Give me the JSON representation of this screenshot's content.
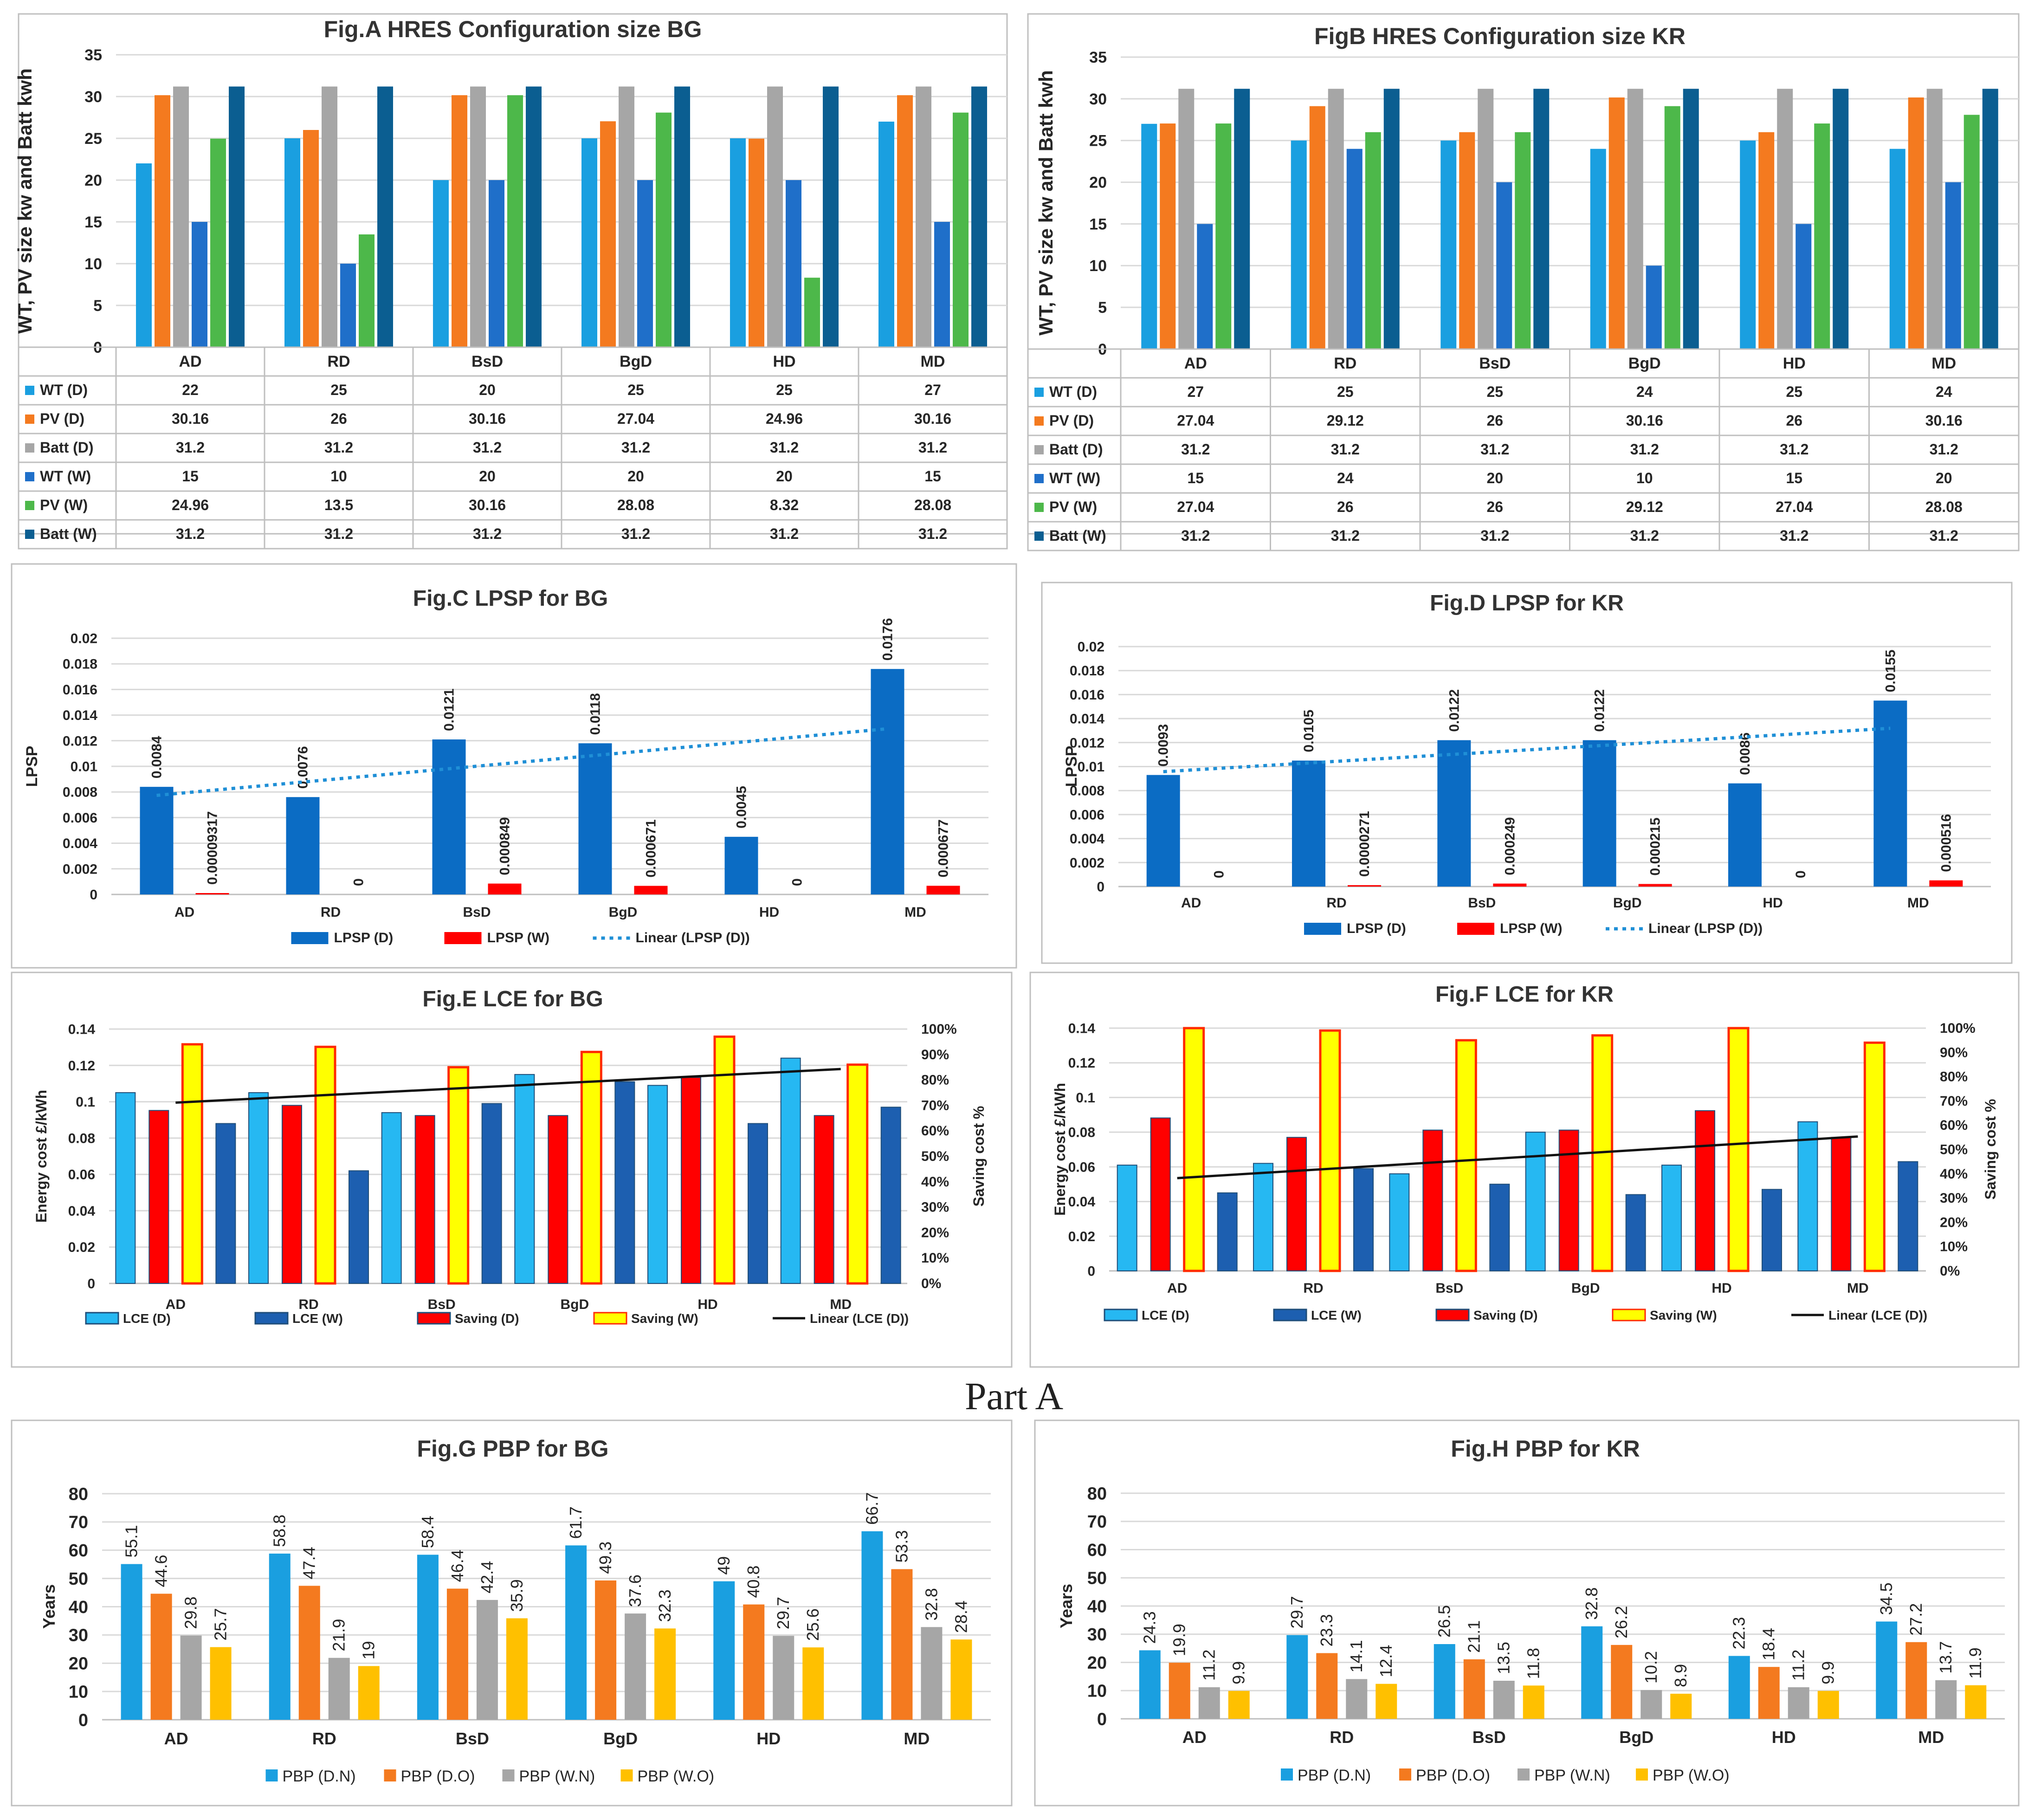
{
  "part_label": "Part A",
  "colors": {
    "wt_d": "#1a9fe0",
    "pv_d": "#f47a1f",
    "batt_d": "#a6a6a6",
    "wt_w": "#1f6fc9",
    "pv_w": "#4db84a",
    "batt_w": "#0b5e91",
    "lpsp_d": "#0b6cc4",
    "lpsp_w": "#ff0000",
    "trend_lpsp": "#1f8fd6",
    "lce_d": "#26b8f2",
    "lce_w": "#1d5fb0",
    "saving_d": "#ff0000",
    "saving_w": "#ffff00",
    "saving_w_border": "#ff2a00",
    "trend": "#111111",
    "pbp_dn": "#1a9fe0",
    "pbp_do": "#f47a1f",
    "pbp_wn": "#a6a6a6",
    "pbp_wo": "#ffc000",
    "grid": "#d9d9d9",
    "frame": "#bfbfbf"
  },
  "chart_data": [
    {
      "id": "A",
      "type": "bar",
      "title": "Fig.A HRES Configuration size BG",
      "ylabel": "WT, PV size kw and Batt kwh",
      "ylim": [
        0,
        35
      ],
      "yticks": [
        0,
        5,
        10,
        15,
        20,
        25,
        30,
        35
      ],
      "categories": [
        "AD",
        "RD",
        "BsD",
        "BgD",
        "HD",
        "MD"
      ],
      "series": [
        {
          "name": "WT (D)",
          "color_key": "wt_d",
          "values": [
            22,
            25,
            20,
            25,
            25,
            27
          ],
          "labels": [
            "22",
            "25",
            "20",
            "25",
            "25",
            "27"
          ]
        },
        {
          "name": "PV (D)",
          "color_key": "pv_d",
          "values": [
            30.16,
            26,
            30.16,
            27.04,
            24.96,
            30.16
          ],
          "labels": [
            "30.16",
            "26",
            "30.16",
            "27.04",
            "24.96",
            "30.16"
          ]
        },
        {
          "name": "Batt (D)",
          "color_key": "batt_d",
          "values": [
            31.2,
            31.2,
            31.2,
            31.2,
            31.2,
            31.2
          ],
          "labels": [
            "31.2",
            "31.2",
            "31.2",
            "31.2",
            "31.2",
            "31.2"
          ]
        },
        {
          "name": "WT (W)",
          "color_key": "wt_w",
          "values": [
            15,
            10,
            20,
            20,
            20,
            15
          ],
          "labels": [
            "15",
            "10",
            "20",
            "20",
            "20",
            "15"
          ]
        },
        {
          "name": "PV (W)",
          "color_key": "pv_w",
          "values": [
            24.96,
            13.5,
            30.16,
            28.08,
            8.32,
            28.08
          ],
          "labels": [
            "24.96",
            "13.5",
            "30.16",
            "28.08",
            "8.32",
            "28.08"
          ]
        },
        {
          "name": "Batt (W)",
          "color_key": "batt_w",
          "values": [
            31.2,
            31.2,
            31.2,
            31.2,
            31.2,
            31.2
          ],
          "labels": [
            "31.2",
            "31.2",
            "31.2",
            "31.2",
            "31.2",
            "31.2"
          ]
        }
      ]
    },
    {
      "id": "B",
      "type": "bar",
      "title": "FigB HRES Configuration size KR",
      "ylabel": "WT, PV size kw and Batt kwh",
      "ylim": [
        0,
        35
      ],
      "yticks": [
        0,
        5,
        10,
        15,
        20,
        25,
        30,
        35
      ],
      "categories": [
        "AD",
        "RD",
        "BsD",
        "BgD",
        "HD",
        "MD"
      ],
      "series": [
        {
          "name": "WT (D)",
          "color_key": "wt_d",
          "values": [
            27,
            25,
            25,
            24,
            25,
            24
          ],
          "labels": [
            "27",
            "25",
            "25",
            "24",
            "25",
            "24"
          ]
        },
        {
          "name": "PV (D)",
          "color_key": "pv_d",
          "values": [
            27.04,
            29.12,
            26,
            30.16,
            26,
            30.16
          ],
          "labels": [
            "27.04",
            "29.12",
            "26",
            "30.16",
            "26",
            "30.16"
          ]
        },
        {
          "name": "Batt (D)",
          "color_key": "batt_d",
          "values": [
            31.2,
            31.2,
            31.2,
            31.2,
            31.2,
            31.2
          ],
          "labels": [
            "31.2",
            "31.2",
            "31.2",
            "31.2",
            "31.2",
            "31.2"
          ]
        },
        {
          "name": "WT (W)",
          "color_key": "wt_w",
          "values": [
            15,
            24,
            20,
            10,
            15,
            20
          ],
          "labels": [
            "15",
            "24",
            "20",
            "10",
            "15",
            "20"
          ]
        },
        {
          "name": "PV (W)",
          "color_key": "pv_w",
          "values": [
            27.04,
            26,
            26,
            29.12,
            27.04,
            28.08
          ],
          "labels": [
            "27.04",
            "26",
            "26",
            "29.12",
            "27.04",
            "28.08"
          ]
        },
        {
          "name": "Batt (W)",
          "color_key": "batt_w",
          "values": [
            31.2,
            31.2,
            31.2,
            31.2,
            31.2,
            31.2
          ],
          "labels": [
            "31.2",
            "31.2",
            "31.2",
            "31.2",
            "31.2",
            "31.2"
          ]
        }
      ]
    },
    {
      "id": "C",
      "type": "bar",
      "title": "Fig.C LPSP for BG",
      "ylabel": "LPSP",
      "ylim": [
        0,
        0.02
      ],
      "yticks": [
        0,
        0.002,
        0.004,
        0.006,
        0.008,
        0.01,
        0.012,
        0.014,
        0.016,
        0.018,
        0.02
      ],
      "yticklabels": [
        "0",
        "0.002",
        "0.004",
        "0.006",
        "0.008",
        "0.01",
        "0.012",
        "0.014",
        "0.016",
        "0.018",
        "0.02"
      ],
      "categories": [
        "AD",
        "RD",
        "BsD",
        "BgD",
        "HD",
        "MD"
      ],
      "series": [
        {
          "name": "LPSP (D)",
          "color_key": "lpsp_d",
          "values": [
            0.0084,
            0.0076,
            0.0121,
            0.0118,
            0.0045,
            0.0176
          ],
          "labels": [
            "0.0084",
            "0.0076",
            "0.0121",
            "0.0118",
            "0.0045",
            "0.0176"
          ]
        },
        {
          "name": "LPSP (W)",
          "color_key": "lpsp_w",
          "values": [
            9.317e-05,
            0,
            0.000849,
            0.000671,
            0,
            0.000677
          ],
          "labels": [
            "0.00009317",
            "0",
            "0.000849",
            "0.000671",
            "0",
            "0.000677"
          ]
        }
      ],
      "legend": [
        "LPSP (D)",
        "LPSP (W)",
        "Linear (LPSP (D))"
      ]
    },
    {
      "id": "D",
      "type": "bar",
      "title": "Fig.D LPSP for KR",
      "ylabel": "LPSP",
      "ylim": [
        0,
        0.02
      ],
      "yticks": [
        0,
        0.002,
        0.004,
        0.006,
        0.008,
        0.01,
        0.012,
        0.014,
        0.016,
        0.018,
        0.02
      ],
      "yticklabels": [
        "0",
        "0.002",
        "0.004",
        "0.006",
        "0.008",
        "0.01",
        "0.012",
        "0.014",
        "0.016",
        "0.018",
        "0.02"
      ],
      "categories": [
        "AD",
        "RD",
        "BsD",
        "BgD",
        "HD",
        "MD"
      ],
      "series": [
        {
          "name": "LPSP (D)",
          "color_key": "lpsp_d",
          "values": [
            0.0093,
            0.0105,
            0.0122,
            0.0122,
            0.0086,
            0.0155
          ],
          "labels": [
            "0.0093",
            "0.0105",
            "0.0122",
            "0.0122",
            "0.0086",
            "0.0155"
          ]
        },
        {
          "name": "LPSP (W)",
          "color_key": "lpsp_w",
          "values": [
            0,
            2.71e-05,
            0.000249,
            0.000215,
            0,
            0.000516
          ],
          "labels": [
            "0",
            "0.0000271",
            "0.000249",
            "0.000215",
            "0",
            "0.000516"
          ]
        }
      ],
      "legend": [
        "LPSP (D)",
        "LPSP (W)",
        "Linear (LPSP (D))"
      ]
    },
    {
      "id": "E",
      "type": "bar",
      "title": "Fig.E LCE for BG",
      "ylabel": "Energy cost £/kWh",
      "y2label": "Saving cost %",
      "ylim": [
        0,
        0.14
      ],
      "yticks": [
        0,
        0.02,
        0.04,
        0.06,
        0.08,
        0.1,
        0.12,
        0.14
      ],
      "yticklabels": [
        "0",
        "0.02",
        "0.04",
        "0.06",
        "0.08",
        "0.1",
        "0.12",
        "0.14"
      ],
      "y2lim": [
        0,
        100
      ],
      "y2ticklabels": [
        "0%",
        "10%",
        "20%",
        "30%",
        "40%",
        "50%",
        "60%",
        "70%",
        "80%",
        "90%",
        "100%"
      ],
      "categories": [
        "AD",
        "RD",
        "BsD",
        "BgD",
        "HD",
        "MD"
      ],
      "series": [
        {
          "name": "LCE (D)",
          "axis": "left",
          "color_key": "lce_d",
          "values": [
            0.105,
            0.105,
            0.094,
            0.115,
            0.109,
            0.124
          ]
        },
        {
          "name": "Saving (D)",
          "axis": "right",
          "color_key": "saving_d",
          "values": [
            68,
            70,
            66,
            66,
            81,
            66
          ]
        },
        {
          "name": "Saving (W)",
          "axis": "right",
          "color_key": "saving_w",
          "values": [
            94,
            93,
            85,
            91,
            97,
            86
          ]
        },
        {
          "name": "LCE (W)",
          "axis": "left",
          "color_key": "lce_w",
          "values": [
            0.088,
            0.062,
            0.099,
            0.111,
            0.088,
            0.097
          ]
        }
      ],
      "trend": {
        "name": "Linear (LCE (D))",
        "start": 0.0995,
        "end": 0.118
      },
      "legend": [
        "LCE (D)",
        "LCE (W)",
        "Saving (D)",
        "Saving (W)",
        "Linear (LCE (D))"
      ]
    },
    {
      "id": "F",
      "type": "bar",
      "title": "Fig.F LCE for KR",
      "ylabel": "Energy cost £/kWh",
      "y2label": "Saving cost %",
      "ylim": [
        0,
        0.14
      ],
      "yticks": [
        0,
        0.02,
        0.04,
        0.06,
        0.08,
        0.1,
        0.12,
        0.14
      ],
      "yticklabels": [
        "0",
        "0.02",
        "0.04",
        "0.06",
        "0.08",
        "0.1",
        "0.12",
        "0.14"
      ],
      "y2lim": [
        0,
        100
      ],
      "y2ticklabels": [
        "0%",
        "10%",
        "20%",
        "30%",
        "40%",
        "50%",
        "60%",
        "70%",
        "80%",
        "90%",
        "100%"
      ],
      "categories": [
        "AD",
        "RD",
        "BsD",
        "BgD",
        "HD",
        "MD"
      ],
      "series": [
        {
          "name": "LCE (D)",
          "axis": "left",
          "color_key": "lce_d",
          "values": [
            0.061,
            0.062,
            0.056,
            0.08,
            0.061,
            0.086
          ]
        },
        {
          "name": "Saving (D)",
          "axis": "right",
          "color_key": "saving_d",
          "values": [
            63,
            55,
            58,
            58,
            66,
            55
          ]
        },
        {
          "name": "Saving (W)",
          "axis": "right",
          "color_key": "saving_w",
          "values": [
            100,
            99,
            95,
            97,
            100,
            94
          ]
        },
        {
          "name": "LCE (W)",
          "axis": "left",
          "color_key": "lce_w",
          "values": [
            0.045,
            0.059,
            0.05,
            0.044,
            0.047,
            0.063
          ]
        }
      ],
      "trend": {
        "name": "Linear (LCE (D))",
        "start": 0.0535,
        "end": 0.0775
      },
      "legend": [
        "LCE (D)",
        "LCE (W)",
        "Saving (D)",
        "Saving (W)",
        "Linear (LCE (D))"
      ]
    },
    {
      "id": "G",
      "type": "bar",
      "title": "Fig.G PBP for BG",
      "ylabel": "Years",
      "ylim": [
        0,
        80
      ],
      "yticks": [
        0,
        10,
        20,
        30,
        40,
        50,
        60,
        70,
        80
      ],
      "categories": [
        "AD",
        "RD",
        "BsD",
        "BgD",
        "HD",
        "MD"
      ],
      "series": [
        {
          "name": "PBP (D.N)",
          "color_key": "pbp_dn",
          "values": [
            55.1,
            58.8,
            58.4,
            61.7,
            49,
            66.7
          ],
          "labels": [
            "55.1",
            "58.8",
            "58.4",
            "61.7",
            "49",
            "66.7"
          ]
        },
        {
          "name": "PBP (D.O)",
          "color_key": "pbp_do",
          "values": [
            44.6,
            47.4,
            46.4,
            49.3,
            40.8,
            53.3
          ],
          "labels": [
            "44.6",
            "47.4",
            "46.4",
            "49.3",
            "40.8",
            "53.3"
          ]
        },
        {
          "name": "PBP (W.N)",
          "color_key": "pbp_wn",
          "values": [
            29.8,
            21.9,
            42.4,
            37.6,
            29.7,
            32.8
          ],
          "labels": [
            "29.8",
            "21.9",
            "42.4",
            "37.6",
            "29.7",
            "32.8"
          ]
        },
        {
          "name": "PBP (W.O)",
          "color_key": "pbp_wo",
          "values": [
            25.7,
            19,
            35.9,
            32.3,
            25.6,
            28.4
          ],
          "labels": [
            "25.7",
            "19",
            "35.9",
            "32.3",
            "25.6",
            "28.4"
          ]
        }
      ]
    },
    {
      "id": "H",
      "type": "bar",
      "title": "Fig.H PBP for KR",
      "ylabel": "Years",
      "ylim": [
        0,
        80
      ],
      "yticks": [
        0,
        10,
        20,
        30,
        40,
        50,
        60,
        70,
        80
      ],
      "categories": [
        "AD",
        "RD",
        "BsD",
        "BgD",
        "HD",
        "MD"
      ],
      "series": [
        {
          "name": "PBP (D.N)",
          "color_key": "pbp_dn",
          "values": [
            24.3,
            29.7,
            26.5,
            32.8,
            22.3,
            34.5
          ],
          "labels": [
            "24.3",
            "29.7",
            "26.5",
            "32.8",
            "22.3",
            "34.5"
          ]
        },
        {
          "name": "PBP (D.O)",
          "color_key": "pbp_do",
          "values": [
            19.9,
            23.3,
            21.1,
            26.2,
            18.4,
            27.2
          ],
          "labels": [
            "19.9",
            "23.3",
            "21.1",
            "26.2",
            "18.4",
            "27.2"
          ]
        },
        {
          "name": "PBP (W.N)",
          "color_key": "pbp_wn",
          "values": [
            11.2,
            14.1,
            13.5,
            10.2,
            11.2,
            13.7
          ],
          "labels": [
            "11.2",
            "14.1",
            "13.5",
            "10.2",
            "11.2",
            "13.7"
          ]
        },
        {
          "name": "PBP (W.O)",
          "color_key": "pbp_wo",
          "values": [
            9.9,
            12.4,
            11.8,
            8.9,
            9.9,
            11.9
          ],
          "labels": [
            "9.9",
            "12.4",
            "11.8",
            "8.9",
            "9.9",
            "11.9"
          ]
        }
      ]
    }
  ]
}
